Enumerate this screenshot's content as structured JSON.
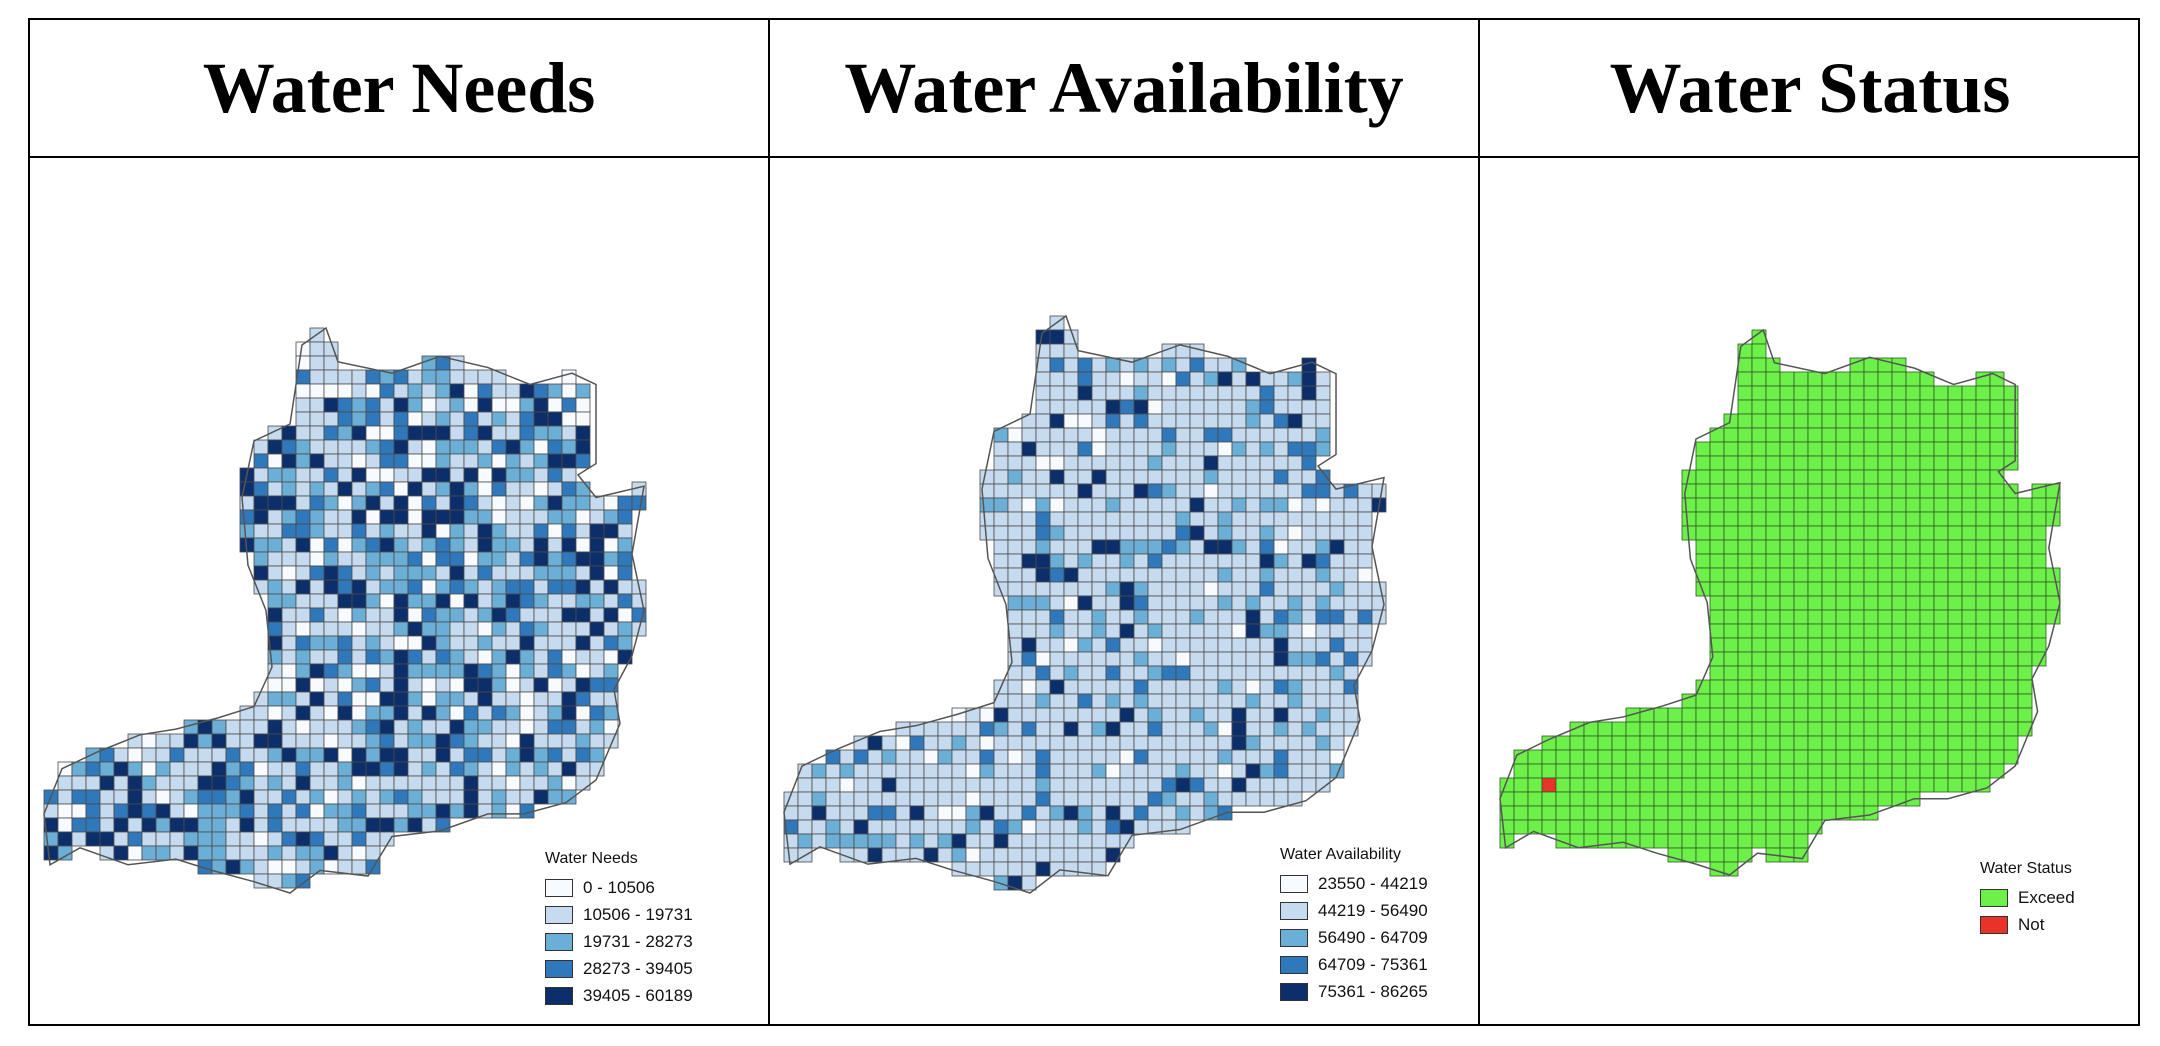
{
  "panels": [
    {
      "title": "Water Needs",
      "legend": {
        "title": "Water Needs",
        "items": [
          {
            "label": "0 - 10506",
            "color": "#f7fbff"
          },
          {
            "label": "10506 - 19731",
            "color": "#c6dbef"
          },
          {
            "label": "19731 - 28273",
            "color": "#6baed6"
          },
          {
            "label": "28273 - 39405",
            "color": "#2f78bc"
          },
          {
            "label": "39405 - 60189",
            "color": "#0c2f6b"
          }
        ]
      },
      "class_weights": [
        0.13,
        0.34,
        0.24,
        0.15,
        0.14
      ]
    },
    {
      "title": "Water Availability",
      "legend": {
        "title": "Water Availability",
        "items": [
          {
            "label": "23550 - 44219",
            "color": "#f7fbff"
          },
          {
            "label": "44219 - 56490",
            "color": "#c6dbef"
          },
          {
            "label": "56490 - 64709",
            "color": "#6baed6"
          },
          {
            "label": "64709 - 75361",
            "color": "#2f78bc"
          },
          {
            "label": "75361 - 86265",
            "color": "#0c2f6b"
          }
        ]
      },
      "class_weights": [
        0.04,
        0.68,
        0.13,
        0.07,
        0.08
      ]
    },
    {
      "title": "Water Status",
      "legend": {
        "title": "Water Status",
        "items": [
          {
            "label": "Exceed",
            "color": "#6ef04a"
          },
          {
            "label": "Not",
            "color": "#e8322a"
          }
        ]
      }
    }
  ]
}
